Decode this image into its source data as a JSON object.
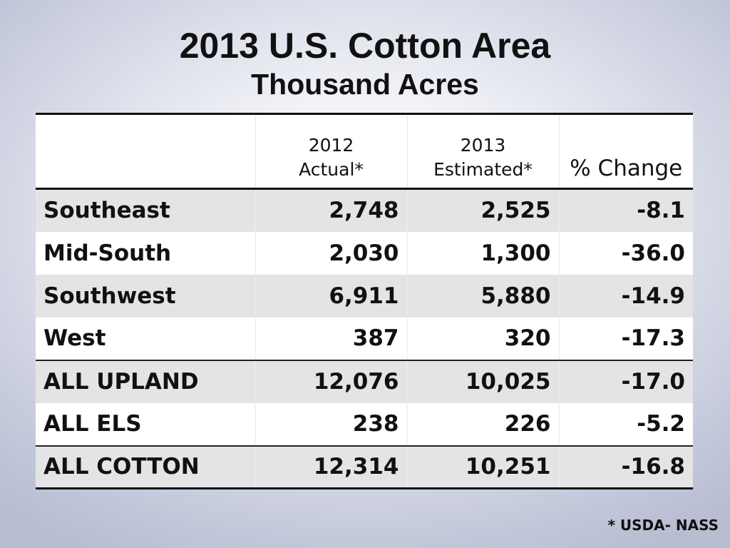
{
  "title": "2013 U.S. Cotton Area",
  "subtitle": "Thousand Acres",
  "table": {
    "headers": [
      {
        "line1": "",
        "line2": ""
      },
      {
        "line1": "2012",
        "line2": "Actual*"
      },
      {
        "line1": "2013",
        "line2": "Estimated*"
      },
      {
        "line1": "",
        "line2": "% Change"
      }
    ],
    "rows": [
      {
        "region": "Southeast",
        "actual_2012": "2,748",
        "estimated_2013": "2,525",
        "pct_change": "-8.1"
      },
      {
        "region": "Mid-South",
        "actual_2012": "2,030",
        "estimated_2013": "1,300",
        "pct_change": "-36.0"
      },
      {
        "region": "Southwest",
        "actual_2012": "6,911",
        "estimated_2013": "5,880",
        "pct_change": "-14.9"
      },
      {
        "region": "West",
        "actual_2012": "387",
        "estimated_2013": "320",
        "pct_change": "-17.3"
      },
      {
        "region": "ALL UPLAND",
        "actual_2012": "12,076",
        "estimated_2013": "10,025",
        "pct_change": "-17.0"
      },
      {
        "region": "ALL ELS",
        "actual_2012": "238",
        "estimated_2013": "226",
        "pct_change": "-5.2"
      },
      {
        "region": "ALL COTTON",
        "actual_2012": "12,314",
        "estimated_2013": "10,251",
        "pct_change": "-16.8"
      }
    ]
  },
  "footnote": "* USDA- NASS",
  "colors": {
    "row_shade": "#e4e4e6",
    "row_plain": "#ffffff",
    "text": "#111111"
  }
}
